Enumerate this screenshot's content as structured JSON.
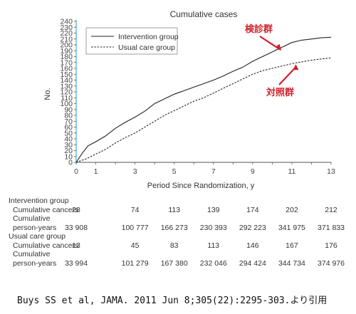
{
  "chart_data": {
    "type": "line",
    "title": "Cumulative cases",
    "xlabel": "Period Since Randomization, y",
    "ylabel": "No.",
    "xlim": [
      0,
      13
    ],
    "ylim": [
      0,
      240
    ],
    "x_ticks": [
      0,
      1,
      3,
      5,
      7,
      9,
      11,
      13
    ],
    "y_ticks": [
      0,
      10,
      20,
      30,
      40,
      50,
      60,
      70,
      80,
      90,
      100,
      110,
      120,
      130,
      140,
      150,
      160,
      170,
      180,
      190,
      200,
      210,
      220,
      230,
      240
    ],
    "grid": false,
    "legend": "top-left",
    "series": [
      {
        "name": "Intervention group",
        "style": "solid",
        "color": "#222222",
        "x": [
          0,
          0.3,
          0.6,
          1,
          1.5,
          2,
          2.5,
          3,
          3.5,
          4,
          4.5,
          5,
          5.5,
          6,
          6.5,
          7,
          7.5,
          8,
          8.5,
          9,
          9.5,
          10,
          10.5,
          11,
          11.5,
          12,
          12.5,
          13
        ],
        "y": [
          0,
          15,
          28,
          35,
          45,
          58,
          68,
          77,
          87,
          100,
          108,
          116,
          122,
          128,
          134,
          140,
          147,
          155,
          162,
          172,
          180,
          188,
          196,
          204,
          208,
          210,
          212,
          213
        ]
      },
      {
        "name": "Usual care group",
        "style": "dashed",
        "color": "#222222",
        "x": [
          0,
          0.5,
          1,
          1.5,
          2,
          2.5,
          3,
          3.5,
          4,
          4.5,
          5,
          5.5,
          6,
          6.5,
          7,
          7.5,
          8,
          8.5,
          9,
          9.5,
          10,
          10.5,
          11,
          11.5,
          12,
          12.5,
          13
        ],
        "y": [
          0,
          6,
          14,
          22,
          33,
          42,
          50,
          60,
          70,
          80,
          88,
          96,
          104,
          110,
          118,
          126,
          134,
          142,
          150,
          156,
          160,
          164,
          168,
          171,
          174,
          176,
          178
        ]
      }
    ],
    "annotations": [
      {
        "text": "検診群",
        "color": "#d0202a",
        "target_series": 0
      },
      {
        "text": "対照群",
        "color": "#d0202a",
        "target_series": 1
      }
    ]
  },
  "table": {
    "columns_x": [
      0,
      3,
      5,
      7,
      9,
      11,
      13
    ],
    "groups": [
      {
        "title": "Intervention group",
        "rows": [
          {
            "label": "Cumulative cancers",
            "values": [
              "28",
              "74",
              "113",
              "139",
              "174",
              "202",
              "212"
            ]
          },
          {
            "label": "Cumulative\nperson-years",
            "values": [
              "33 908",
              "100 777",
              "166 273",
              "230 393",
              "292 223",
              "341 975",
              "371 833"
            ]
          }
        ]
      },
      {
        "title": "Usual care group",
        "rows": [
          {
            "label": "Cumulative cancers",
            "values": [
              "13",
              "45",
              "83",
              "113",
              "146",
              "167",
              "176"
            ]
          },
          {
            "label": "Cumulative\nperson-years",
            "values": [
              "33 994",
              "101 279",
              "167 380",
              "232 046",
              "294 424",
              "344 734",
              "374 976"
            ]
          }
        ]
      }
    ]
  },
  "citation": "Buys SS et al, JAMA. 2011 Jun 8;305(22):2295-303.より引用"
}
